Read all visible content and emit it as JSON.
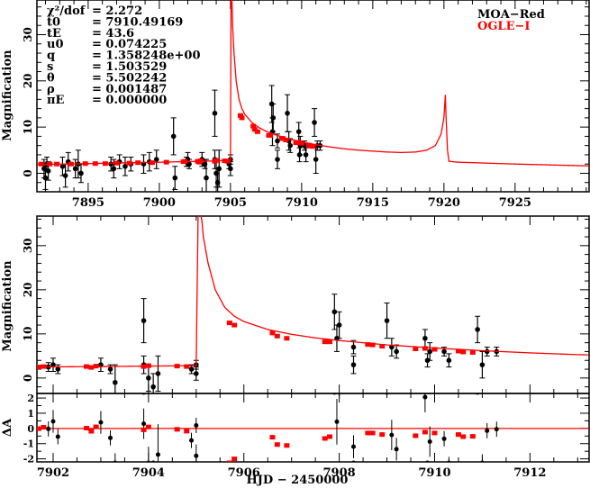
{
  "chart_data": {
    "type": "scatter",
    "title": "",
    "xlabel": "HJD − 2450000",
    "ylabel": "Magnification",
    "residual_ylabel": "ΔA",
    "legend": {
      "placement": "top-right",
      "entries": [
        {
          "name": "MOA−Red",
          "color": "#000000"
        },
        {
          "name": "OGLE−I",
          "color": "#ff0000"
        }
      ]
    },
    "params": [
      {
        "label": "χ²/dof",
        "value": "= 2.272"
      },
      {
        "label": "t0",
        "value": "= 7910.49169"
      },
      {
        "label": "tE",
        "value": "= 43.6"
      },
      {
        "label": "u0",
        "value": "= 0.074225"
      },
      {
        "label": "q",
        "value": "= 1.358248e+00"
      },
      {
        "label": "s",
        "value": "= 1.503529"
      },
      {
        "label": "θ",
        "value": "= 5.502242"
      },
      {
        "label": "ρ",
        "value": "= 0.001487"
      },
      {
        "label": "πE",
        "value": "= 0.000000"
      }
    ],
    "panels": {
      "top": {
        "xlim": [
          7891.4,
          7930.2
        ],
        "ylim": [
          -4,
          37.5
        ],
        "xticks": [
          7895,
          7900,
          7905,
          7910,
          7915,
          7920,
          7925
        ],
        "yticks": [
          0,
          10,
          20,
          30
        ]
      },
      "zoom": {
        "xlim": [
          7901.66,
          7913.24
        ],
        "ylim": [
          -3.5,
          36.7
        ],
        "xticks": [
          7902,
          7904,
          7906,
          7908,
          7910,
          7912
        ],
        "yticks": [
          0,
          10,
          20,
          30
        ]
      },
      "residual": {
        "ylim": [
          -2.2,
          2.3
        ],
        "yticks": [
          -2,
          -1,
          0,
          1,
          2
        ]
      }
    },
    "model": {
      "color": "#ff0000",
      "x": [
        7891.4,
        7895,
        7900,
        7903,
        7905.0,
        7905.02,
        7905.05,
        7905.1,
        7905.15,
        7905.25,
        7905.4,
        7905.6,
        7905.8,
        7906,
        7906.5,
        7907,
        7907.5,
        7908,
        7909,
        7910,
        7911,
        7912,
        7913,
        7914,
        7915,
        7916,
        7917,
        7918,
        7918.8,
        7919.4,
        7919.8,
        7920.0,
        7920.1,
        7920.15,
        7920.25,
        7920.35,
        7921,
        7925,
        7930.2
      ],
      "y": [
        1.9,
        2.1,
        2.4,
        2.6,
        2.8,
        20,
        45,
        38,
        32,
        26,
        20,
        16,
        14,
        12.8,
        11,
        9.9,
        9.1,
        8.5,
        7.5,
        6.8,
        6.2,
        5.7,
        5.3,
        5.0,
        4.8,
        4.6,
        4.5,
        4.6,
        5.0,
        6.0,
        8.5,
        12,
        17,
        12,
        5,
        2.6,
        2.4,
        2.0,
        1.6
      ]
    },
    "series": [
      {
        "name": "MOA−Red",
        "color": "#000000",
        "points": [
          [
            7891.9,
            1,
            2
          ],
          [
            7892.0,
            -1,
            2.5
          ],
          [
            7892.1,
            2,
            1.5
          ],
          [
            7892.2,
            0.5,
            2
          ],
          [
            7893.2,
            1.5,
            2
          ],
          [
            7893.4,
            -0.5,
            2.5
          ],
          [
            7893.6,
            2.5,
            2
          ],
          [
            7894.1,
            1,
            2
          ],
          [
            7894.3,
            2,
            3
          ],
          [
            7894.5,
            0,
            2
          ],
          [
            7896.6,
            2,
            1.5
          ],
          [
            7896.8,
            1,
            2
          ],
          [
            7897.2,
            2.5,
            1.5
          ],
          [
            7897.6,
            1.5,
            2
          ],
          [
            7898.0,
            2,
            1.5
          ],
          [
            7898.9,
            2,
            2
          ],
          [
            7899.3,
            2.5,
            2
          ],
          [
            7899.8,
            3,
            2
          ],
          [
            7901.0,
            8,
            4
          ],
          [
            7901.1,
            -1,
            2.5
          ],
          [
            7901.9,
            2.5,
            1
          ],
          [
            7902.0,
            3,
            1.5
          ],
          [
            7902.1,
            2,
            1
          ],
          [
            7903.0,
            3,
            1.5
          ],
          [
            7903.2,
            2,
            1
          ],
          [
            7903.3,
            -1,
            4
          ],
          [
            7903.9,
            3,
            2
          ],
          [
            7904.0,
            0,
            3
          ],
          [
            7904.1,
            -2,
            3
          ],
          [
            7904.2,
            1,
            4
          ],
          [
            7903.9,
            13,
            5
          ],
          [
            7904.9,
            2,
            1
          ],
          [
            7905.0,
            3,
            1
          ],
          [
            7905.0,
            1,
            1.5
          ],
          [
            7907.9,
            15,
            4
          ],
          [
            7907.95,
            9,
            3
          ],
          [
            7908.0,
            12,
            3
          ],
          [
            7908.3,
            3,
            2
          ],
          [
            7908.3,
            7,
            1.5
          ],
          [
            7909.0,
            13,
            4
          ],
          [
            7909.1,
            7,
            2
          ],
          [
            7909.2,
            6,
            1.5
          ],
          [
            7909.8,
            9,
            2
          ],
          [
            7909.85,
            4,
            1.5
          ],
          [
            7909.9,
            6,
            2
          ],
          [
            7910.2,
            6,
            1
          ],
          [
            7910.3,
            4,
            1.5
          ],
          [
            7910.9,
            11,
            3
          ],
          [
            7911.0,
            3,
            3
          ],
          [
            7911.1,
            6,
            1
          ],
          [
            7911.3,
            6,
            1
          ]
        ]
      },
      {
        "name": "OGLE−I",
        "color": "#ff0000",
        "points": [
          [
            7891.7,
            2,
            0.2
          ],
          [
            7892.3,
            2,
            0.2
          ],
          [
            7892.8,
            2,
            0.2
          ],
          [
            7893.8,
            2,
            0.2
          ],
          [
            7894.8,
            2.1,
            0.2
          ],
          [
            7895.5,
            2.1,
            0.2
          ],
          [
            7896.2,
            2.1,
            0.2
          ],
          [
            7897,
            2.2,
            0.2
          ],
          [
            7897.9,
            2.2,
            0.2
          ],
          [
            7898.5,
            2.3,
            0.2
          ],
          [
            7899.5,
            2.3,
            0.2
          ],
          [
            7900.5,
            2.4,
            0.2
          ],
          [
            7901.7,
            2.5,
            0.2
          ],
          [
            7901.8,
            2.6,
            0.2
          ],
          [
            7902.7,
            2.6,
            0.2
          ],
          [
            7902.8,
            2.4,
            0.2
          ],
          [
            7902.9,
            2.7,
            0.2
          ],
          [
            7903.9,
            2.6,
            0.2
          ],
          [
            7904.0,
            2.8,
            0.2
          ],
          [
            7904.6,
            2.7,
            0.2
          ],
          [
            7904.8,
            2.6,
            0.2
          ],
          [
            7905.7,
            12.5,
            0.3
          ],
          [
            7905.8,
            12,
            0.3
          ],
          [
            7906.6,
            10.2,
            0.3
          ],
          [
            7906.7,
            9.5,
            0.3
          ],
          [
            7906.9,
            9.0,
            0.3
          ],
          [
            7907.7,
            8.2,
            0.3
          ],
          [
            7907.8,
            8.2,
            0.3
          ],
          [
            7908.6,
            7.6,
            0.3
          ],
          [
            7908.7,
            7.5,
            0.3
          ],
          [
            7908.9,
            7.2,
            0.3
          ],
          [
            7909.6,
            6.6,
            0.3
          ],
          [
            7909.8,
            6.7,
            0.3
          ],
          [
            7910.0,
            6.5,
            0.3
          ],
          [
            7910.5,
            6.1,
            0.3
          ],
          [
            7910.6,
            5.9,
            0.3
          ],
          [
            7910.8,
            5.8,
            0.3
          ]
        ]
      }
    ]
  }
}
